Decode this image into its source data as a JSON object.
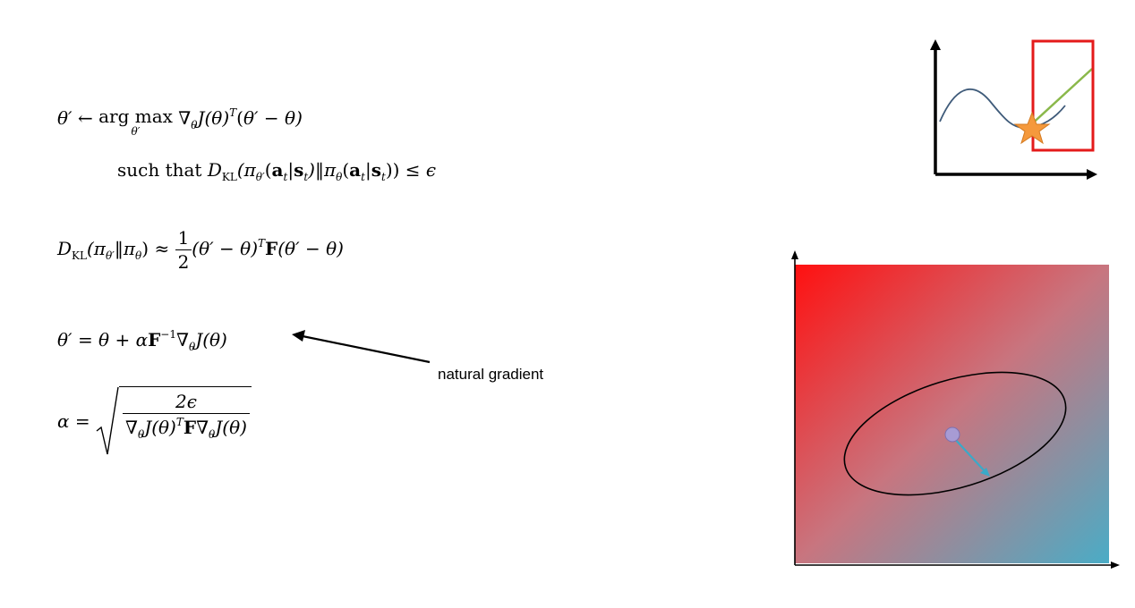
{
  "equations": {
    "update": {
      "lhs": "θ′",
      "arrow": "←",
      "argmax": "arg max",
      "argmax_under": "θ′",
      "nabla": "∇",
      "nabla_sub": "θ",
      "J": "J",
      "theta_paren": "(θ)",
      "T": "T",
      "paren_open": "(",
      "theta_prime": "θ′",
      "minus_theta": " − θ)"
    },
    "constraint": {
      "such_that": "such that ",
      "D": "D",
      "KL": "KL",
      "pi_open": "(π",
      "pi_sub_prime": "θ′",
      "a_open": "(",
      "a": "a",
      "t": "t",
      "bar": "|",
      "s": "s",
      "pi_mid": ")‖π",
      "pi_sub": "θ",
      "close": "(",
      "rest_close": ")) ≤ ",
      "epsilon": "ϵ"
    },
    "kl_approx": {
      "D": "D",
      "KL": "KL",
      "open": "(π",
      "sub_prime": "θ′",
      "mid": "‖π",
      "sub": "θ",
      "approx": ") ≈ ",
      "num": "1",
      "den": "2",
      "left": "(θ′ − θ)",
      "T": "T",
      "F": "F",
      "right": "(θ′ − θ)"
    },
    "natural": {
      "lhs": "θ′ = θ + α",
      "F": "F",
      "inv": "−1",
      "nabla": "∇",
      "sub": "θ",
      "rest": "J(θ)"
    },
    "alpha": {
      "lhs": "α = ",
      "num": "2ϵ",
      "den_a": "∇",
      "den_sub": "θ",
      "den_b": "J(θ)",
      "den_T": "T",
      "den_F": "F",
      "den_c": "∇",
      "den_sub2": "θ",
      "den_d": "J(θ)"
    }
  },
  "annotation": {
    "label": "natural gradient"
  },
  "colors": {
    "curve": "#3f5b7a",
    "highlight_box": "#e41a1a",
    "tangent_line": "#8ab84a",
    "star_fill": "#f5993c",
    "gradient_top_left": "#ff1010",
    "gradient_mid": "#c8757f",
    "gradient_bottom_right": "#4aacc6",
    "point_fill": "#a79bd4",
    "step_arrow": "#3aa9c8"
  },
  "icons": {
    "small_plot": "function-curve-plot",
    "star": "star-icon",
    "landscape": "gradient-landscape"
  }
}
